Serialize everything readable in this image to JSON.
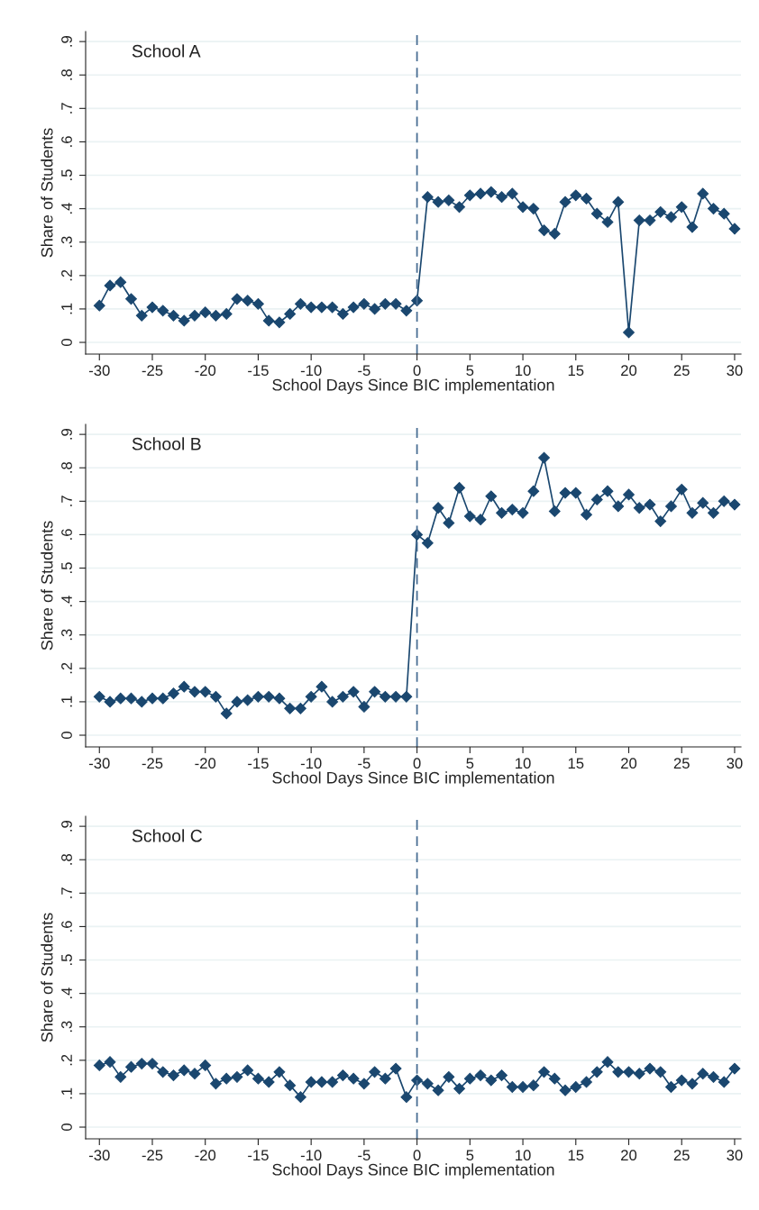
{
  "chart_data": [
    {
      "type": "line",
      "annotations": [
        "School A"
      ],
      "xlabel": "School Days Since BIC implementation",
      "ylabel": "Share of Students",
      "marker": "diamond",
      "grid": "y",
      "x": [
        -30,
        -29,
        -28,
        -27,
        -26,
        -25,
        -24,
        -23,
        -22,
        -21,
        -20,
        -19,
        -18,
        -17,
        -16,
        -15,
        -14,
        -13,
        -12,
        -11,
        -10,
        -9,
        -8,
        -7,
        -6,
        -5,
        -4,
        -3,
        -2,
        -1,
        0,
        1,
        2,
        3,
        4,
        5,
        6,
        7,
        8,
        9,
        10,
        11,
        12,
        13,
        14,
        15,
        16,
        17,
        18,
        19,
        20,
        21,
        22,
        23,
        24,
        25,
        26,
        27,
        28,
        29,
        30
      ],
      "series": [
        {
          "color": "#1a476f",
          "values": [
            0.11,
            0.17,
            0.18,
            0.13,
            0.08,
            0.105,
            0.095,
            0.08,
            0.065,
            0.08,
            0.09,
            0.08,
            0.085,
            0.13,
            0.125,
            0.115,
            0.065,
            0.06,
            0.085,
            0.115,
            0.105,
            0.105,
            0.105,
            0.085,
            0.105,
            0.115,
            0.1,
            0.115,
            0.115,
            0.095,
            0.125,
            0.435,
            0.42,
            0.425,
            0.405,
            0.44,
            0.445,
            0.45,
            0.435,
            0.445,
            0.405,
            0.4,
            0.335,
            0.325,
            0.42,
            0.44,
            0.43,
            0.385,
            0.36,
            0.42,
            0.03,
            0.365,
            0.365,
            0.39,
            0.375,
            0.405,
            0.345,
            0.445,
            0.4,
            0.385,
            0.34
          ]
        }
      ],
      "ref_lines": [
        {
          "axis": "x",
          "value": 0,
          "color": "#4a6f94",
          "line_style": "dashed"
        }
      ],
      "xlim": [
        -31.3,
        30.6
      ],
      "ylim": [
        -0.035,
        0.93
      ],
      "xticks": [
        {
          "value": -30,
          "label": "-30"
        },
        {
          "value": -25,
          "label": "-25"
        },
        {
          "value": -20,
          "label": "-20"
        },
        {
          "value": -15,
          "label": "-15"
        },
        {
          "value": -10,
          "label": "-10"
        },
        {
          "value": -5,
          "label": "-5"
        },
        0,
        5,
        10,
        15,
        20,
        25,
        30
      ],
      "yticks": [
        0,
        {
          "value": 0.1,
          "label": ".1"
        },
        {
          "value": 0.2,
          "label": ".2"
        },
        {
          "value": 0.3,
          "label": ".3"
        },
        {
          "value": 0.4,
          "label": ".4"
        },
        {
          "value": 0.5,
          "label": ".5"
        },
        {
          "value": 0.6,
          "label": ".6"
        },
        {
          "value": 0.7,
          "label": ".7"
        },
        {
          "value": 0.8,
          "label": ".8"
        },
        {
          "value": 0.9,
          "label": ".9"
        }
      ]
    },
    {
      "type": "line",
      "annotations": [
        "School B"
      ],
      "xlabel": "School Days Since BIC implementation",
      "ylabel": "Share of Students",
      "marker": "diamond",
      "grid": "y",
      "x": [
        -30,
        -29,
        -28,
        -27,
        -26,
        -25,
        -24,
        -23,
        -22,
        -21,
        -20,
        -19,
        -18,
        -17,
        -16,
        -15,
        -14,
        -13,
        -12,
        -11,
        -10,
        -9,
        -8,
        -7,
        -6,
        -5,
        -4,
        -3,
        -2,
        -1,
        0,
        1,
        2,
        3,
        4,
        5,
        6,
        7,
        8,
        9,
        10,
        11,
        12,
        13,
        14,
        15,
        16,
        17,
        18,
        19,
        20,
        21,
        22,
        23,
        24,
        25,
        26,
        27,
        28,
        29,
        30
      ],
      "series": [
        {
          "color": "#1a476f",
          "values": [
            0.115,
            0.1,
            0.11,
            0.11,
            0.1,
            0.11,
            0.11,
            0.125,
            0.145,
            0.13,
            0.13,
            0.115,
            0.065,
            0.1,
            0.105,
            0.115,
            0.115,
            0.11,
            0.08,
            0.08,
            0.115,
            0.145,
            0.1,
            0.115,
            0.13,
            0.085,
            0.13,
            0.115,
            0.115,
            0.115,
            0.6,
            0.575,
            0.68,
            0.635,
            0.74,
            0.655,
            0.645,
            0.715,
            0.665,
            0.675,
            0.665,
            0.73,
            0.83,
            0.67,
            0.725,
            0.725,
            0.66,
            0.705,
            0.73,
            0.685,
            0.72,
            0.68,
            0.69,
            0.64,
            0.685,
            0.735,
            0.665,
            0.695,
            0.665,
            0.7,
            0.69
          ]
        }
      ],
      "ref_lines": [
        {
          "axis": "x",
          "value": 0,
          "color": "#4a6f94",
          "line_style": "dashed"
        }
      ],
      "xlim": [
        -31.3,
        30.6
      ],
      "ylim": [
        -0.035,
        0.93
      ],
      "xticks": [
        {
          "value": -30,
          "label": "-30"
        },
        {
          "value": -25,
          "label": "-25"
        },
        {
          "value": -20,
          "label": "-20"
        },
        {
          "value": -15,
          "label": "-15"
        },
        {
          "value": -10,
          "label": "-10"
        },
        {
          "value": -5,
          "label": "-5"
        },
        0,
        5,
        10,
        15,
        20,
        25,
        30
      ],
      "yticks": [
        0,
        {
          "value": 0.1,
          "label": ".1"
        },
        {
          "value": 0.2,
          "label": ".2"
        },
        {
          "value": 0.3,
          "label": ".3"
        },
        {
          "value": 0.4,
          "label": ".4"
        },
        {
          "value": 0.5,
          "label": ".5"
        },
        {
          "value": 0.6,
          "label": ".6"
        },
        {
          "value": 0.7,
          "label": ".7"
        },
        {
          "value": 0.8,
          "label": ".8"
        },
        {
          "value": 0.9,
          "label": ".9"
        }
      ]
    },
    {
      "type": "line",
      "annotations": [
        "School C"
      ],
      "xlabel": "School Days Since BIC implementation",
      "ylabel": "Share of Students",
      "marker": "diamond",
      "grid": "y",
      "x": [
        -30,
        -29,
        -28,
        -27,
        -26,
        -25,
        -24,
        -23,
        -22,
        -21,
        -20,
        -19,
        -18,
        -17,
        -16,
        -15,
        -14,
        -13,
        -12,
        -11,
        -10,
        -9,
        -8,
        -7,
        -6,
        -5,
        -4,
        -3,
        -2,
        -1,
        0,
        1,
        2,
        3,
        4,
        5,
        6,
        7,
        8,
        9,
        10,
        11,
        12,
        13,
        14,
        15,
        16,
        17,
        18,
        19,
        20,
        21,
        22,
        23,
        24,
        25,
        26,
        27,
        28,
        29,
        30
      ],
      "series": [
        {
          "color": "#1a476f",
          "values": [
            0.185,
            0.195,
            0.15,
            0.18,
            0.19,
            0.19,
            0.165,
            0.155,
            0.17,
            0.16,
            0.185,
            0.13,
            0.145,
            0.15,
            0.17,
            0.145,
            0.135,
            0.165,
            0.125,
            0.09,
            0.135,
            0.135,
            0.135,
            0.155,
            0.145,
            0.13,
            0.165,
            0.145,
            0.175,
            0.09,
            0.14,
            0.13,
            0.11,
            0.15,
            0.115,
            0.145,
            0.155,
            0.14,
            0.155,
            0.12,
            0.12,
            0.125,
            0.165,
            0.145,
            0.11,
            0.12,
            0.135,
            0.165,
            0.195,
            0.165,
            0.165,
            0.16,
            0.175,
            0.165,
            0.12,
            0.14,
            0.13,
            0.16,
            0.15,
            0.135,
            0.175
          ]
        }
      ],
      "ref_lines": [
        {
          "axis": "x",
          "value": 0,
          "color": "#4a6f94",
          "line_style": "dashed"
        }
      ],
      "xlim": [
        -31.3,
        30.6
      ],
      "ylim": [
        -0.035,
        0.93
      ],
      "xticks": [
        {
          "value": -30,
          "label": "-30"
        },
        {
          "value": -25,
          "label": "-25"
        },
        {
          "value": -20,
          "label": "-20"
        },
        {
          "value": -15,
          "label": "-15"
        },
        {
          "value": -10,
          "label": "-10"
        },
        {
          "value": -5,
          "label": "-5"
        },
        0,
        5,
        10,
        15,
        20,
        25,
        30
      ],
      "yticks": [
        0,
        {
          "value": 0.1,
          "label": ".1"
        },
        {
          "value": 0.2,
          "label": ".2"
        },
        {
          "value": 0.3,
          "label": ".3"
        },
        {
          "value": 0.4,
          "label": ".4"
        },
        {
          "value": 0.5,
          "label": ".5"
        },
        {
          "value": 0.6,
          "label": ".6"
        },
        {
          "value": 0.7,
          "label": ".7"
        },
        {
          "value": 0.8,
          "label": ".8"
        },
        {
          "value": 0.9,
          "label": ".9"
        }
      ]
    }
  ]
}
